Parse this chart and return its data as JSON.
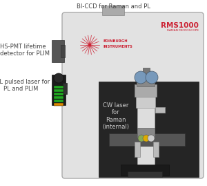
{
  "bg_color": "#ffffff",
  "label_color": "#444444",
  "ei_logo_color": "#cc2233",
  "rms_text_color": "#cc2233",
  "rms_title": "RMS1000",
  "rms_subtitle": "RAMAN MICROSCOPE",
  "ei_text1": "EDINBURGH",
  "ei_text2": "INSTRUMENTS",
  "label_biccd": "BI-CCD for Raman and PL",
  "label_hspmt": "HS-PMT lifetime\ndetector for PLIM",
  "label_epl": "EPL pulsed laser for\nPL and PLIM",
  "label_cw": "CW laser\nfor\nRaman\n(internal)",
  "font_size_labels": 6.0,
  "font_size_rms": 7.5,
  "font_size_rms_sub": 3.2,
  "font_size_ei": 3.8
}
